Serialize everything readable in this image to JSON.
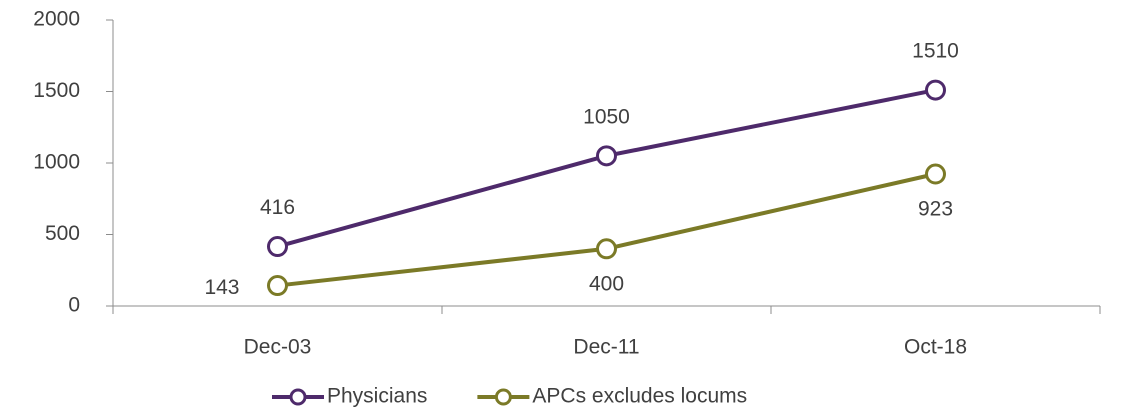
{
  "chart_data": {
    "type": "line",
    "categories": [
      "Dec-03",
      "Dec-11",
      "Oct-18"
    ],
    "series": [
      {
        "name": "Physicians",
        "color": "#4e2a6b",
        "values": [
          416,
          1050,
          1510
        ]
      },
      {
        "name": "APCs excludes locums",
        "color": "#7b7a27",
        "values": [
          143,
          400,
          923
        ]
      }
    ],
    "ylim": [
      0,
      2000
    ],
    "yticks": [
      0,
      500,
      1000,
      1500,
      2000
    ],
    "grid": false,
    "legend": "bottom"
  }
}
